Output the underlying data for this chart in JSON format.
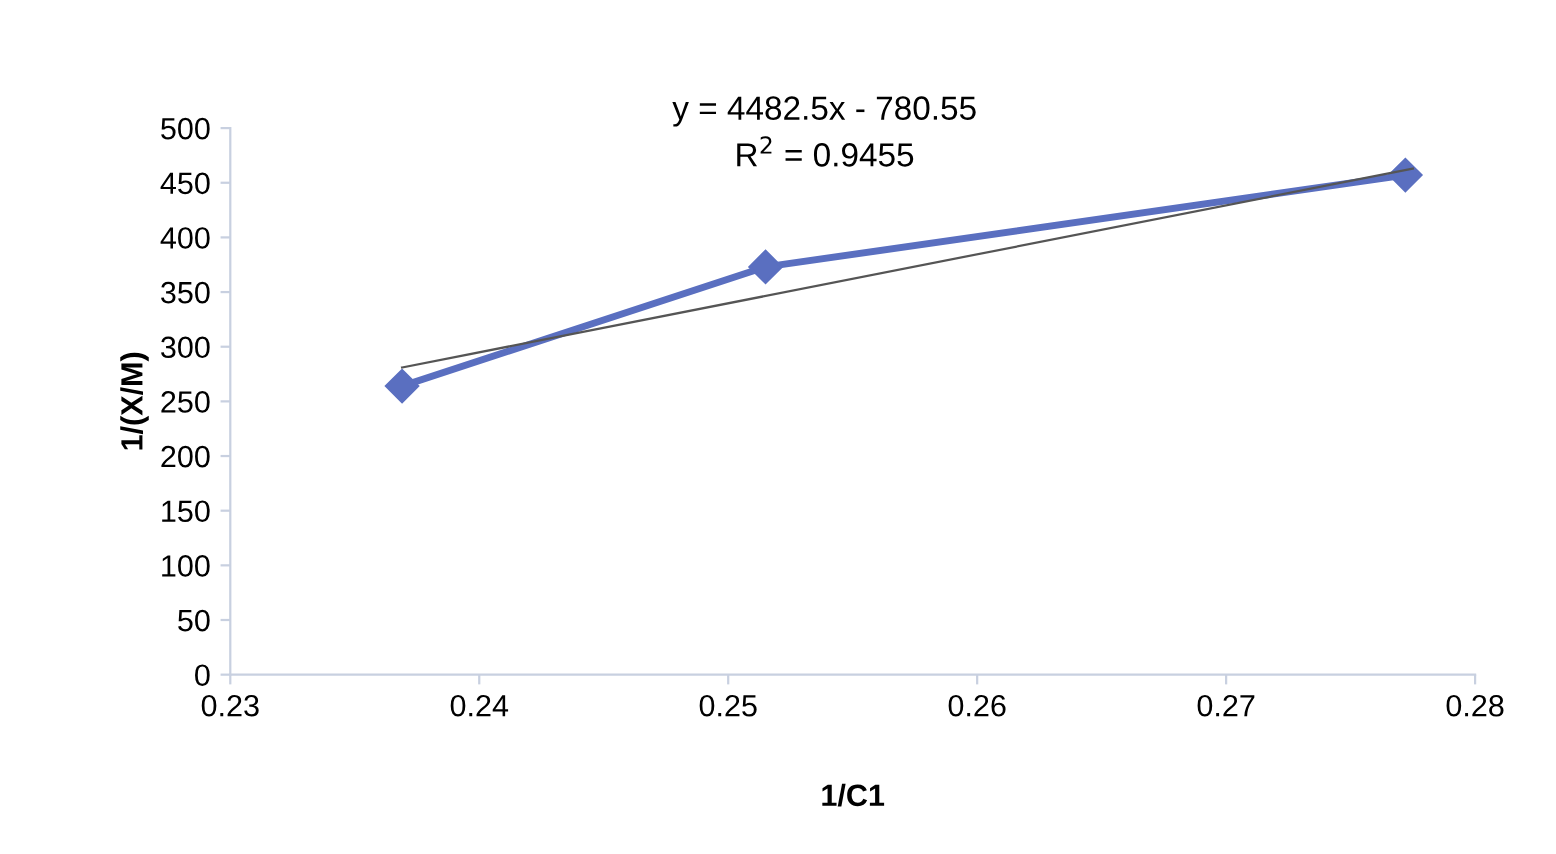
{
  "chart_data": {
    "type": "line",
    "xlabel": "1/C1",
    "ylabel": "1/(X/M)",
    "annotations": [
      "y = 4482.5x - 780.55",
      "R$^{2}$ = 0.9455"
    ],
    "series": [
      {
        "color": "#5a6fc0",
        "x": [
          0.2369,
          0.2515,
          0.2772
        ],
        "values": [
          264,
          373,
          457
        ],
        "marker": "diamond"
      },
      {
        "color": "#555555",
        "x": [
          0.2369,
          0.2775
        ],
        "values": [
          281,
          463
        ],
        "marker": "none"
      }
    ],
    "xlim": [
      0.23,
      0.28
    ],
    "xticks": [
      {
        "value": 0.23,
        "label": "0.23"
      },
      {
        "value": 0.24,
        "label": "0.24"
      },
      {
        "value": 0.25,
        "label": "0.25"
      },
      {
        "value": 0.26,
        "label": "0.26"
      },
      {
        "value": 0.27,
        "label": "0.27"
      },
      {
        "value": 0.28,
        "label": "0.28"
      }
    ],
    "ylim": [
      0,
      500
    ],
    "yticks": [
      0,
      50,
      100,
      150,
      200,
      250,
      300,
      350,
      400,
      450,
      500
    ],
    "grid": false,
    "legend": false
  }
}
